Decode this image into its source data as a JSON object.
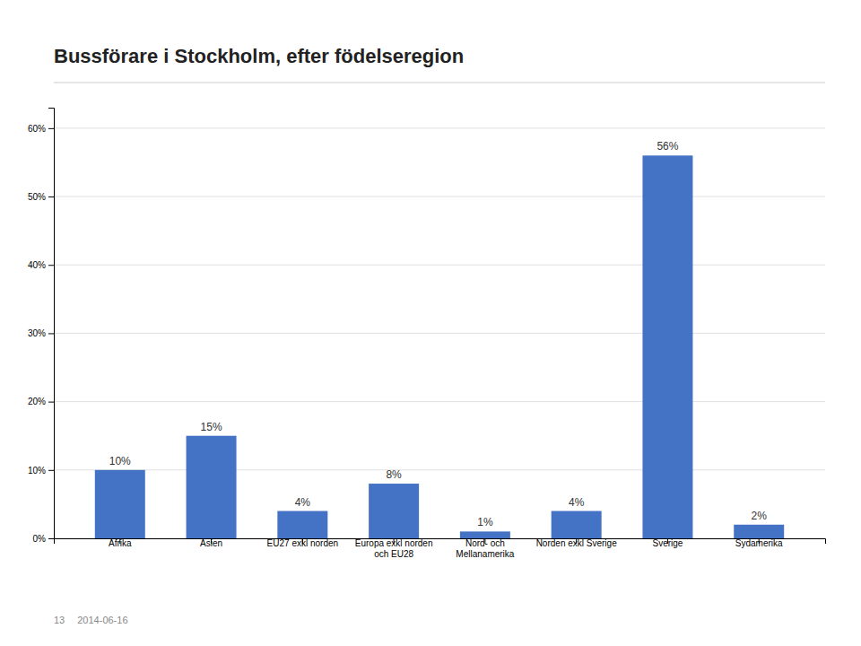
{
  "chart_data": {
    "type": "bar",
    "title": "Bussförare i Stockholm, efter födelseregion",
    "categories": [
      "Afrika",
      "Asien",
      "EU27 exkl norden",
      "Europa exkl norden\noch EU28",
      "Nord- och\nMellanamerika",
      "Norden exkl Sverige",
      "Sverige",
      "Sydamerika"
    ],
    "values": [
      0.1,
      0.15,
      0.04,
      0.08,
      0.01,
      0.04,
      0.56,
      0.02
    ],
    "value_labels": [
      "10%",
      "15%",
      "4%",
      "8%",
      "1%",
      "4%",
      "56%",
      "2%"
    ],
    "color": "#4472C4",
    "ylim": [
      0,
      0.63
    ],
    "yticks": [
      {
        "value": 0.0,
        "label": "0%"
      },
      {
        "value": 0.1,
        "label": "10%"
      },
      {
        "value": 0.2,
        "label": "20%"
      },
      {
        "value": 0.3,
        "label": "30%"
      },
      {
        "value": 0.4,
        "label": "40%"
      },
      {
        "value": 0.5,
        "label": "50%"
      },
      {
        "value": 0.6,
        "label": "60%"
      }
    ],
    "grid": true,
    "annotations": [
      "13",
      "2014-06-16"
    ]
  }
}
